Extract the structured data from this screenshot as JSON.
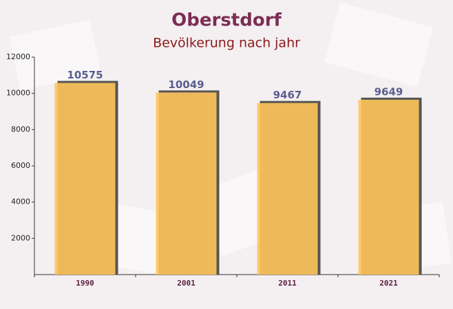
{
  "chart_data": {
    "type": "bar",
    "title": "Oberstdorf",
    "subtitle": "Bevölkerung nach jahr",
    "categories": [
      "1990",
      "2001",
      "2011",
      "2021"
    ],
    "values": [
      10575,
      10049,
      9467,
      9649
    ],
    "color": "#ffc55a",
    "ylim": [
      0,
      12000
    ],
    "yticks": [
      2000,
      4000,
      6000,
      8000,
      10000,
      12000
    ],
    "grid": false
  }
}
